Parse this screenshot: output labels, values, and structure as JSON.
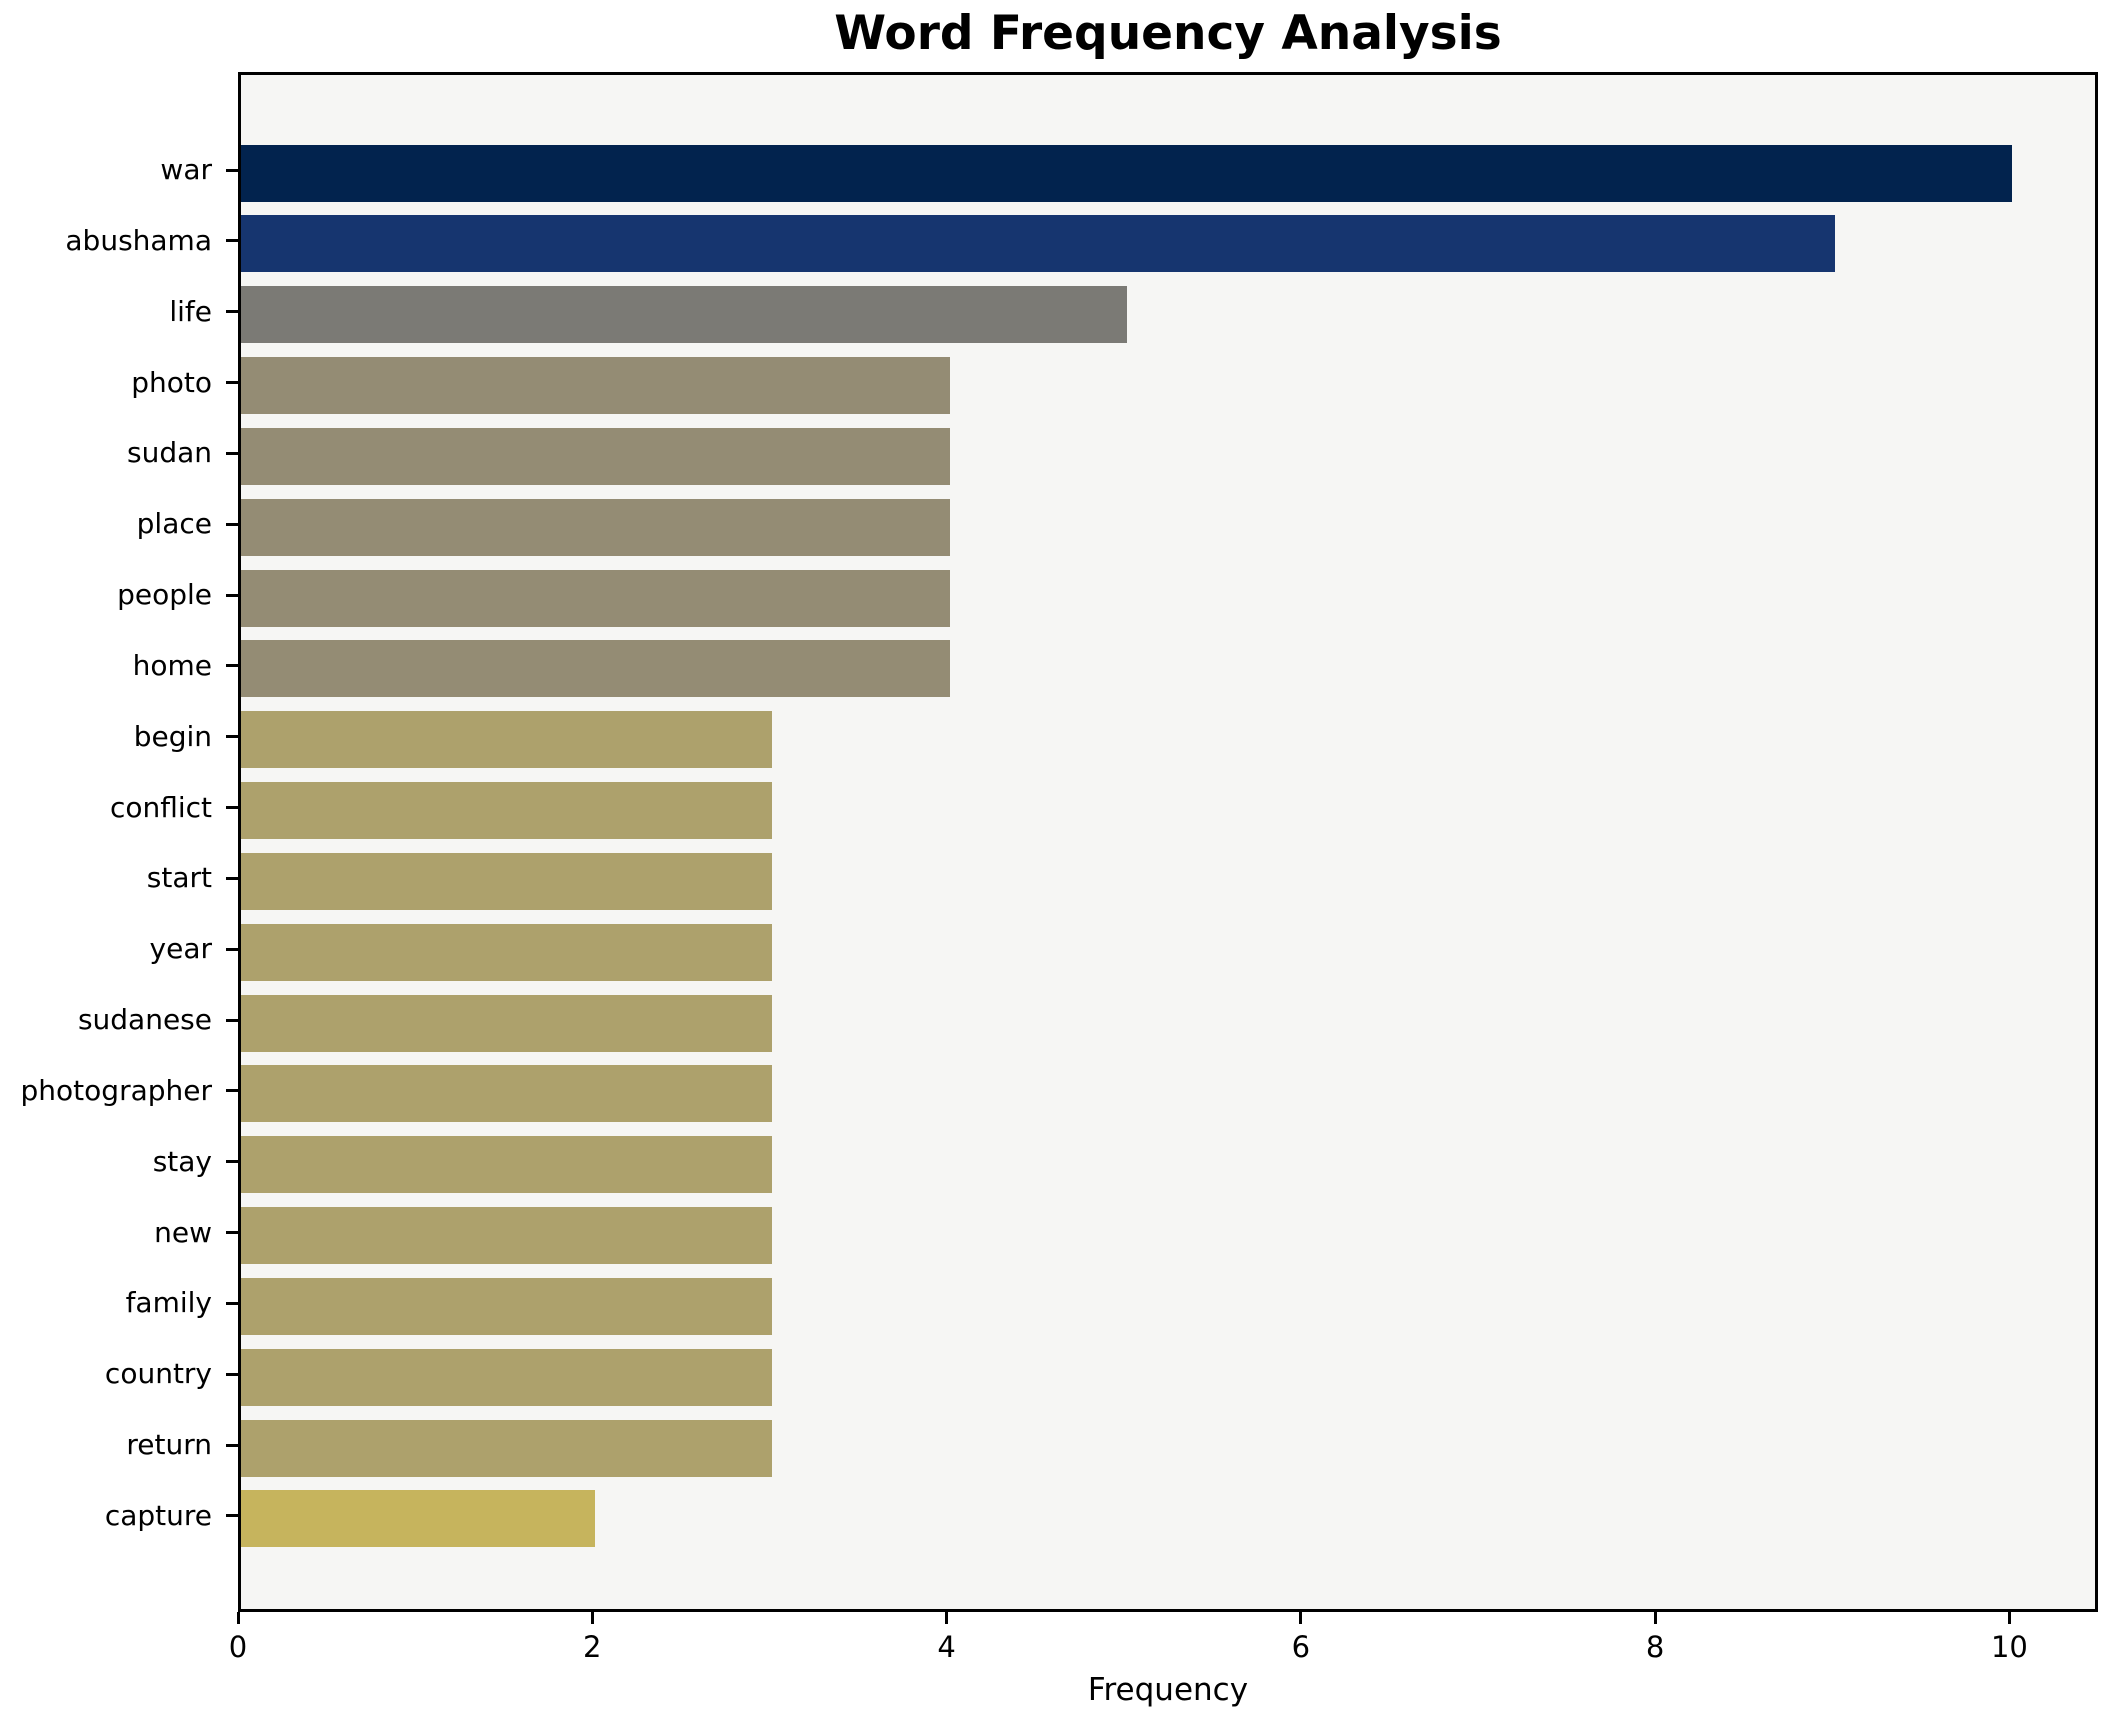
{
  "chart_data": {
    "type": "bar",
    "orientation": "horizontal",
    "title": "Word Frequency Analysis",
    "xlabel": "Frequency",
    "ylabel": "",
    "categories": [
      "war",
      "abushama",
      "life",
      "photo",
      "sudan",
      "place",
      "people",
      "home",
      "begin",
      "conflict",
      "start",
      "year",
      "sudanese",
      "photographer",
      "stay",
      "new",
      "family",
      "country",
      "return",
      "capture"
    ],
    "values": [
      10,
      9,
      5,
      4,
      4,
      4,
      4,
      4,
      3,
      3,
      3,
      3,
      3,
      3,
      3,
      3,
      3,
      3,
      3,
      2
    ],
    "bar_colors": [
      "#02234e",
      "#16356f",
      "#7b7a75",
      "#948c74",
      "#948c74",
      "#948c74",
      "#948c74",
      "#948c74",
      "#ada16c",
      "#ada16c",
      "#ada16c",
      "#ada16c",
      "#ada16c",
      "#ada16c",
      "#ada16c",
      "#ada16c",
      "#ada16c",
      "#ada16c",
      "#ada16c",
      "#c6b45d"
    ],
    "xlim": [
      0,
      10.5
    ],
    "xticks": [
      0,
      2,
      4,
      6,
      8,
      10
    ],
    "grid": false,
    "legend_position": "none",
    "plot_bg": "#f6f6f4",
    "figure_bg": "#ffffff",
    "axis_color": "#000000"
  }
}
